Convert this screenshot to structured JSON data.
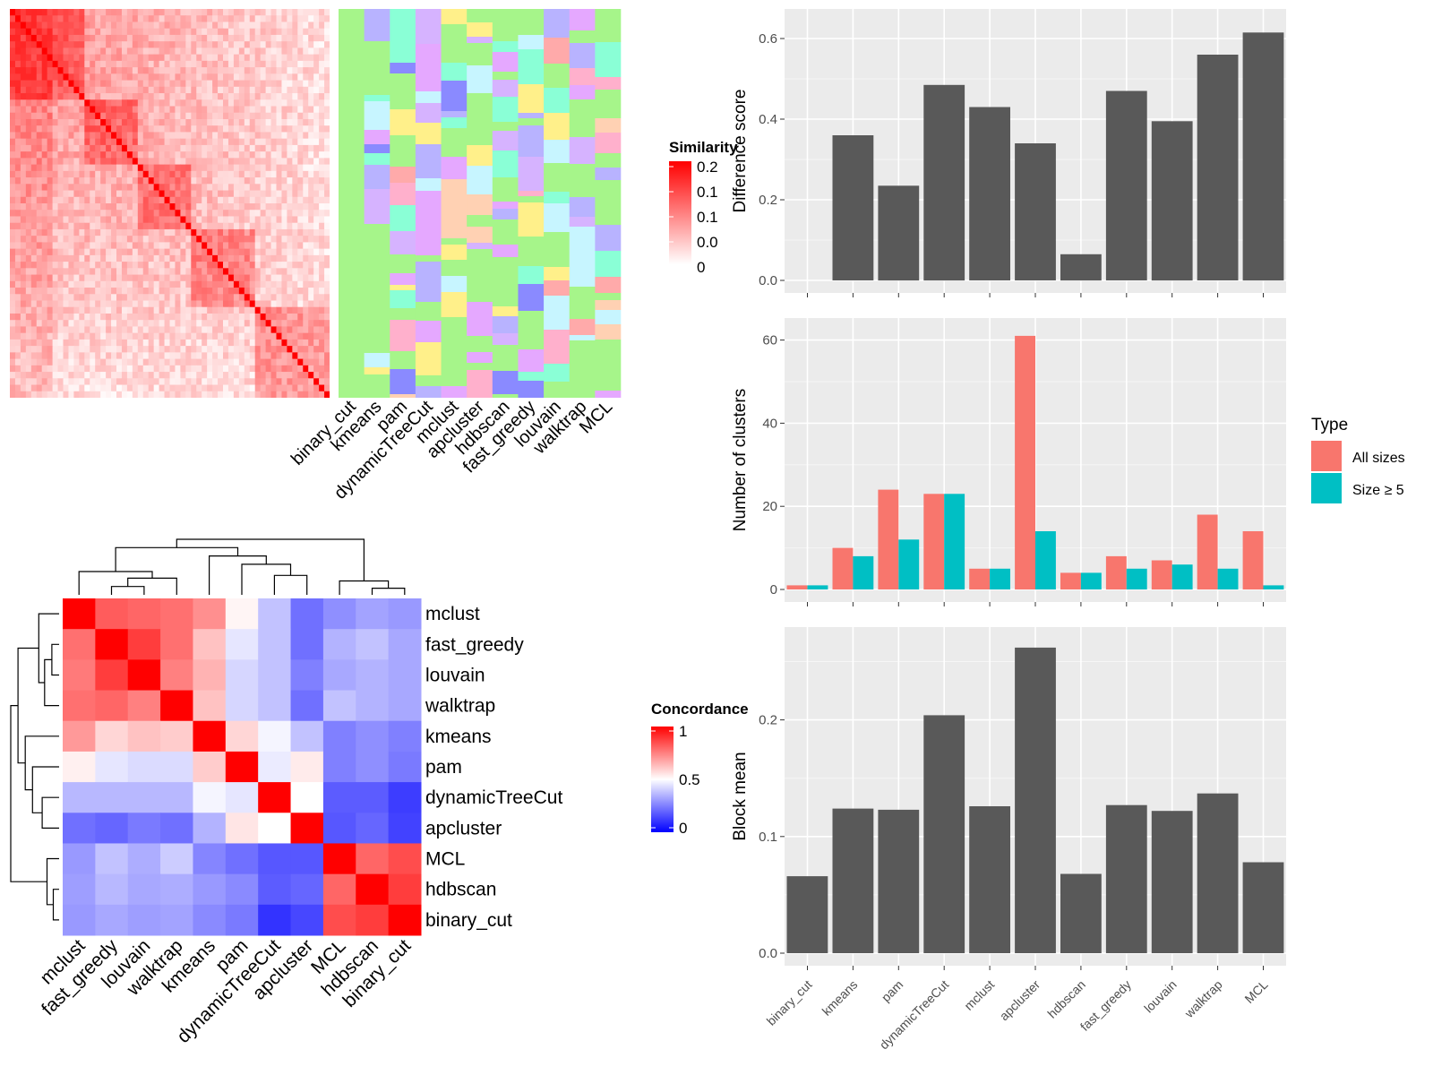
{
  "colors": {
    "heat_low": "#ffffff",
    "heat_high": "#ff0000",
    "concord_low": "#0000ff",
    "concord_mid": "#ffffff",
    "concord_high": "#ff0000",
    "panel_bg": "#ebebeb",
    "bar_fill": "#595959",
    "all_sizes": "#f8766d",
    "size_ge5": "#00bfc4",
    "cluster_palette": [
      "#a6f58a",
      "#b8b3ff",
      "#e5a8ff",
      "#ffd1b3",
      "#fff08a",
      "#ffb0cc",
      "#8affd6",
      "#c7f5ff",
      "#ffaaaa",
      "#d6b3ff",
      "#8a8aff"
    ]
  },
  "similarity_heatmap": {
    "legend_title": "Similarity",
    "legend_ticks": [
      "0.2",
      "0.1",
      "0.1",
      "0.0",
      "0"
    ]
  },
  "method_columns": [
    "binary_cut",
    "kmeans",
    "pam",
    "dynamicTreeCut",
    "mclust",
    "apcluster",
    "hdbscan",
    "fast_greedy",
    "louvain",
    "walktrap",
    "MCL"
  ],
  "concordance": {
    "legend_title": "Concordance",
    "legend_ticks": [
      "1",
      "0.5",
      "0"
    ],
    "row_labels": [
      "mclust",
      "fast_greedy",
      "louvain",
      "walktrap",
      "kmeans",
      "pam",
      "dynamicTreeCut",
      "apcluster",
      "MCL",
      "hdbscan",
      "binary_cut"
    ],
    "col_labels": [
      "mclust",
      "fast_greedy",
      "louvain",
      "walktrap",
      "kmeans",
      "pam",
      "dynamicTreeCut",
      "apcluster",
      "MCL",
      "hdbscan",
      "binary_cut"
    ],
    "matrix": [
      [
        1.0,
        0.82,
        0.8,
        0.78,
        0.72,
        0.52,
        0.38,
        0.22,
        0.28,
        0.32,
        0.3
      ],
      [
        0.78,
        1.0,
        0.88,
        0.78,
        0.62,
        0.45,
        0.38,
        0.22,
        0.35,
        0.38,
        0.33
      ],
      [
        0.76,
        0.88,
        1.0,
        0.75,
        0.65,
        0.42,
        0.38,
        0.25,
        0.33,
        0.35,
        0.33
      ],
      [
        0.78,
        0.8,
        0.75,
        1.0,
        0.62,
        0.42,
        0.38,
        0.22,
        0.38,
        0.35,
        0.33
      ],
      [
        0.7,
        0.58,
        0.62,
        0.6,
        1.0,
        0.58,
        0.48,
        0.38,
        0.25,
        0.28,
        0.25
      ],
      [
        0.53,
        0.45,
        0.43,
        0.43,
        0.6,
        1.0,
        0.46,
        0.54,
        0.25,
        0.28,
        0.24
      ],
      [
        0.36,
        0.36,
        0.36,
        0.36,
        0.48,
        0.45,
        1.0,
        0.5,
        0.18,
        0.18,
        0.12
      ],
      [
        0.22,
        0.2,
        0.24,
        0.22,
        0.35,
        0.55,
        0.5,
        1.0,
        0.17,
        0.2,
        0.13
      ],
      [
        0.3,
        0.38,
        0.34,
        0.4,
        0.26,
        0.22,
        0.17,
        0.17,
        1.0,
        0.8,
        0.85
      ],
      [
        0.31,
        0.36,
        0.33,
        0.34,
        0.3,
        0.27,
        0.18,
        0.2,
        0.8,
        1.0,
        0.88
      ],
      [
        0.3,
        0.33,
        0.31,
        0.32,
        0.27,
        0.24,
        0.1,
        0.14,
        0.85,
        0.88,
        1.0
      ]
    ]
  },
  "bar_panels": {
    "categories": [
      "binary_cut",
      "kmeans",
      "pam",
      "dynamicTreeCut",
      "mclust",
      "apcluster",
      "hdbscan",
      "fast_greedy",
      "louvain",
      "walktrap",
      "MCL"
    ],
    "legend": {
      "title": "Type",
      "entries": [
        "All sizes",
        "Size ≥ 5"
      ]
    }
  },
  "chart_data": [
    {
      "type": "bar",
      "ylabel": "Difference score",
      "categories": [
        "binary_cut",
        "kmeans",
        "pam",
        "dynamicTreeCut",
        "mclust",
        "apcluster",
        "hdbscan",
        "fast_greedy",
        "louvain",
        "walktrap",
        "MCL"
      ],
      "values": [
        0.0,
        0.36,
        0.235,
        0.485,
        0.43,
        0.34,
        0.065,
        0.47,
        0.395,
        0.56,
        0.615
      ],
      "ylim": [
        0,
        0.66
      ],
      "yticks": [
        0.0,
        0.2,
        0.4,
        0.6
      ],
      "yticklabels": [
        "0.0",
        "0.2",
        "0.4",
        "0.6"
      ],
      "grid": true
    },
    {
      "type": "bar",
      "ylabel": "Number of clusters",
      "categories": [
        "binary_cut",
        "kmeans",
        "pam",
        "dynamicTreeCut",
        "mclust",
        "apcluster",
        "hdbscan",
        "fast_greedy",
        "louvain",
        "walktrap",
        "MCL"
      ],
      "series": [
        {
          "name": "All sizes",
          "values": [
            1,
            10,
            24,
            23,
            5,
            61,
            4,
            8,
            7,
            18,
            14
          ]
        },
        {
          "name": "Size ≥ 5",
          "values": [
            1,
            8,
            12,
            23,
            5,
            14,
            4,
            5,
            6,
            5,
            1
          ]
        }
      ],
      "ylim": [
        0,
        64
      ],
      "yticks": [
        0,
        20,
        40,
        60
      ],
      "yticklabels": [
        "0",
        "20",
        "40",
        "60"
      ],
      "legend": "right",
      "grid": true
    },
    {
      "type": "bar",
      "ylabel": "Block mean",
      "categories": [
        "binary_cut",
        "kmeans",
        "pam",
        "dynamicTreeCut",
        "mclust",
        "apcluster",
        "hdbscan",
        "fast_greedy",
        "louvain",
        "walktrap",
        "MCL"
      ],
      "values": [
        0.066,
        0.124,
        0.123,
        0.204,
        0.126,
        0.262,
        0.068,
        0.127,
        0.122,
        0.137,
        0.078
      ],
      "ylim": [
        0,
        0.275
      ],
      "yticks": [
        0.0,
        0.1,
        0.2
      ],
      "yticklabels": [
        "0.0",
        "0.1",
        "0.2"
      ],
      "grid": true
    }
  ]
}
